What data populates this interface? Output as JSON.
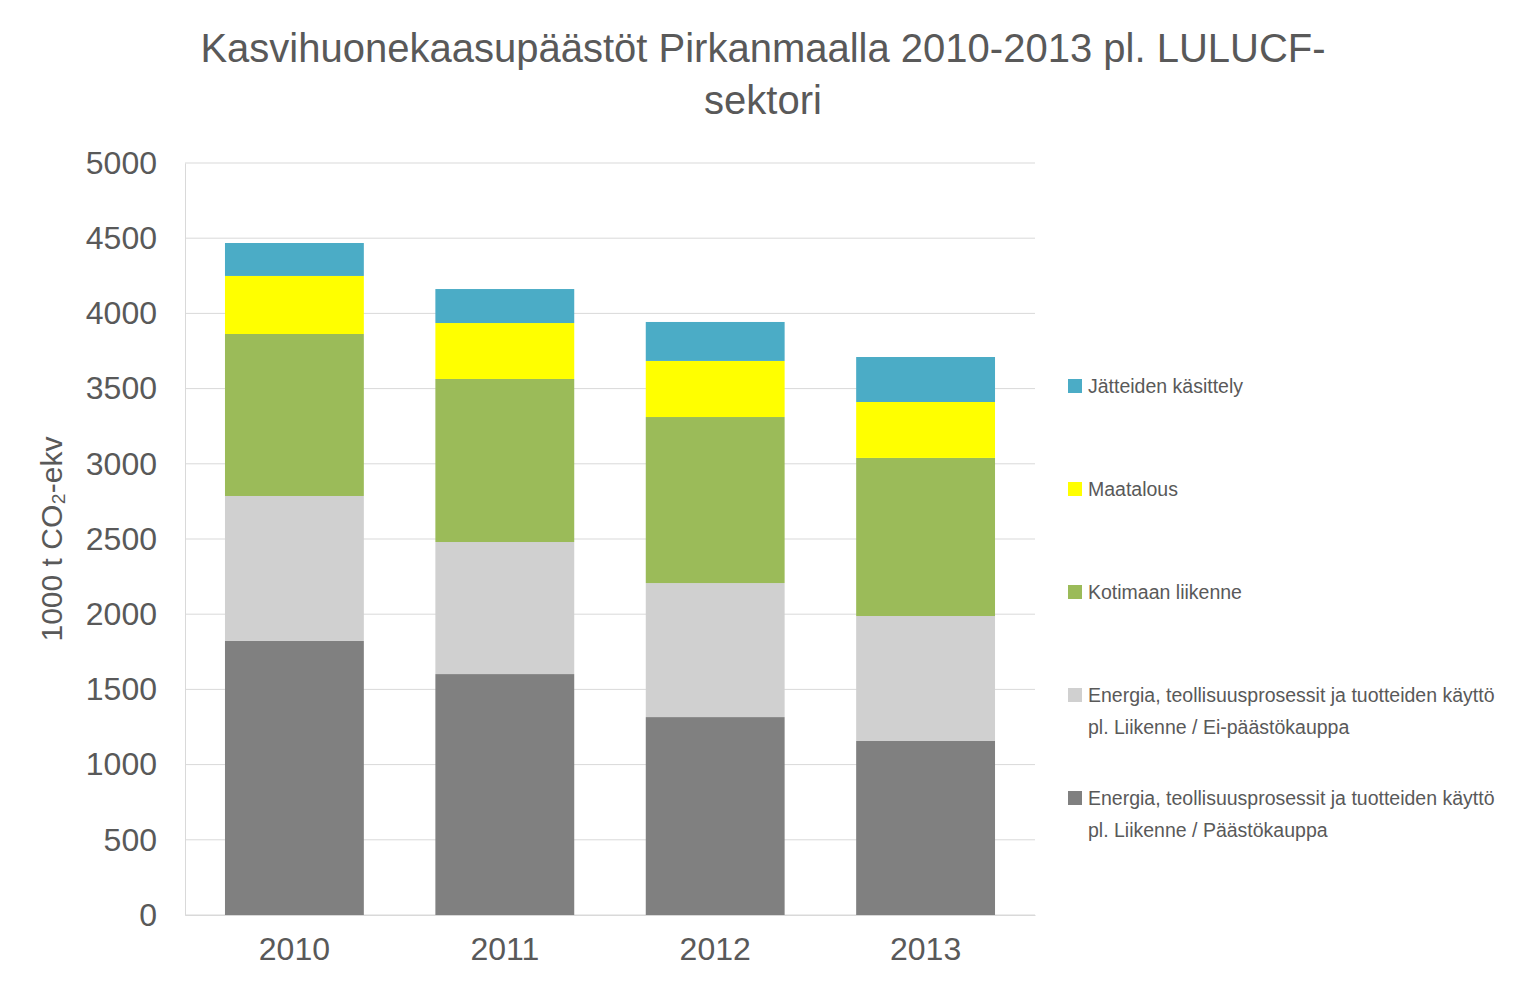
{
  "chart_data": {
    "type": "bar",
    "stacked": true,
    "title": "Kasvihuonekaasupäästöt Pirkanmaalla 2010-2013 pl. LULUCF-sektori",
    "y_label": "1000 t CO₂-ekv",
    "categories": [
      "2010",
      "2011",
      "2012",
      "2013"
    ],
    "series": [
      {
        "name": "Energia, teollisuusprosessit ja tuotteiden käyttö pl. Liikenne / Päästökauppa",
        "color": "#808080",
        "values": [
          1822,
          1602,
          1316,
          1157
        ]
      },
      {
        "name": "Energia, teollisuusprosessit ja tuotteiden käyttö pl. Liikenne / Ei-päästökauppa",
        "color": "#d0d0d0",
        "values": [
          964,
          878,
          891,
          831
        ]
      },
      {
        "name": "Kotimaan liikenne",
        "color": "#9bbb59",
        "values": [
          1077,
          1084,
          1104,
          1051
        ]
      },
      {
        "name": "Maatalous",
        "color": "#ffff00",
        "values": [
          386,
          372,
          373,
          372
        ]
      },
      {
        "name": "Jätteiden käsittely",
        "color": "#4bacc6",
        "values": [
          219,
          226,
          259,
          299
        ]
      }
    ],
    "ylim": [
      0,
      5000
    ],
    "yticks": [
      0,
      500,
      1000,
      1500,
      2000,
      2500,
      3000,
      3500,
      4000,
      4500,
      5000
    ],
    "grid": true,
    "legend": "right"
  }
}
